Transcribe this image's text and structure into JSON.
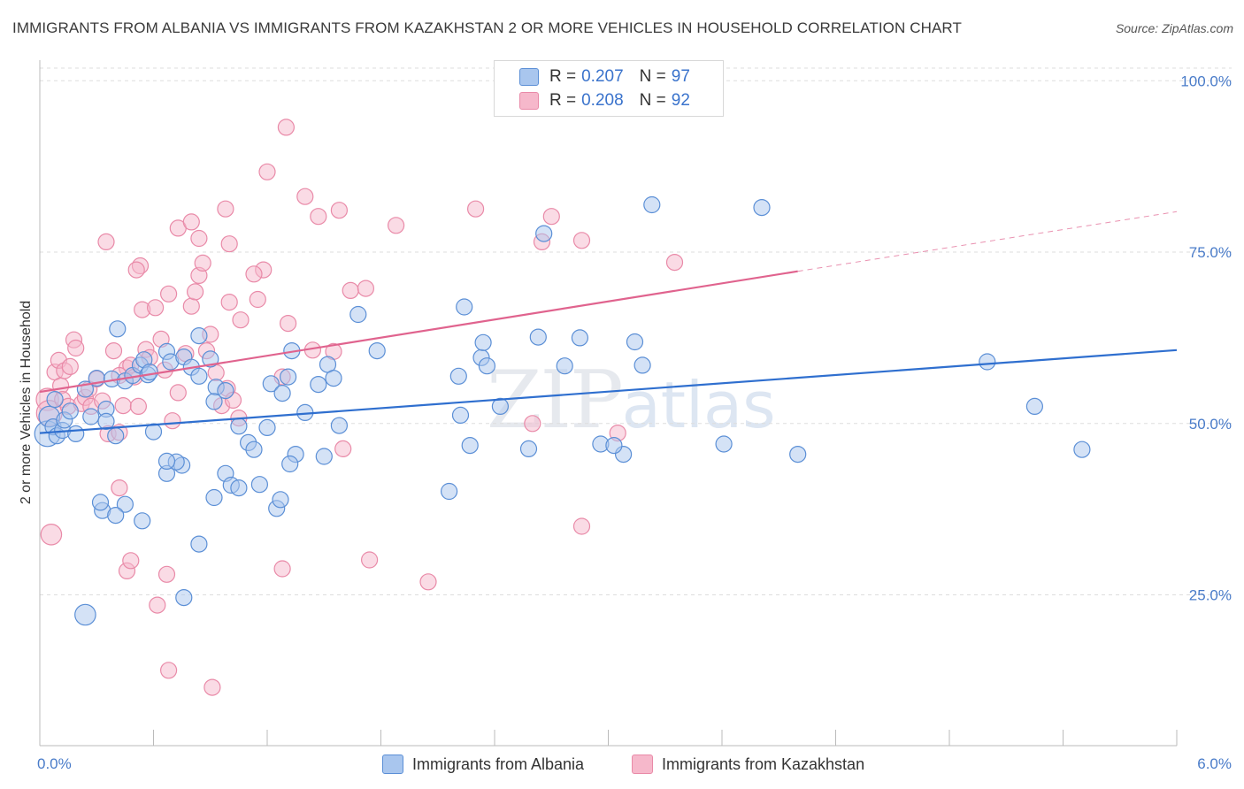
{
  "header": {
    "title": "IMMIGRANTS FROM ALBANIA VS IMMIGRANTS FROM KAZAKHSTAN 2 OR MORE VEHICLES IN HOUSEHOLD CORRELATION CHART",
    "source": "Source: ZipAtlas.com"
  },
  "legend": {
    "albania": {
      "r_label": "R =",
      "r_value": "0.207",
      "n_label": "N =",
      "n_value": "97"
    },
    "kazakhstan": {
      "r_label": "R =",
      "r_value": "0.208",
      "n_label": "N =",
      "n_value": "92"
    }
  },
  "watermark": {
    "zip": "ZIP",
    "atlas": "atlas"
  },
  "colors": {
    "albania_fill": "#a9c6ee",
    "albania_stroke": "#5b8fd6",
    "albania_line": "#2f6fcf",
    "kazakhstan_fill": "#f6b8cb",
    "kazakhstan_stroke": "#e98aa8",
    "kazakhstan_line": "#e0638e",
    "tick_label": "#4a7cc9",
    "grid": "#dddddd"
  },
  "chart_data": {
    "type": "scatter",
    "title": "IMMIGRANTS FROM ALBANIA VS IMMIGRANTS FROM KAZAKHSTAN 2 OR MORE VEHICLES IN HOUSEHOLD CORRELATION CHART",
    "xlabel": "",
    "ylabel": "2 or more Vehicles in Household",
    "xlim": [
      0,
      6
    ],
    "ylim": [
      3,
      103
    ],
    "x_tick_labels": [
      "0.0%",
      "6.0%"
    ],
    "y_ticks": [
      25,
      50,
      75,
      100
    ],
    "y_tick_labels": [
      "25.0%",
      "50.0%",
      "75.0%",
      "100.0%"
    ],
    "grid": true,
    "legend_position": "top-center",
    "series": [
      {
        "name": "Immigrants from Albania",
        "R": 0.207,
        "N": 97,
        "trend": {
          "x0": 0,
          "y0": 48.6,
          "x1": 6,
          "y1": 60.7
        },
        "points": [
          [
            0.04,
            48.5,
            1.6
          ],
          [
            0.05,
            51.0,
            1.3
          ],
          [
            0.07,
            49.5,
            1.0
          ],
          [
            0.08,
            53.5,
            1.0
          ],
          [
            0.09,
            48.2,
            1.0
          ],
          [
            0.12,
            49.0,
            1.0
          ],
          [
            0.13,
            50.5,
            1.0
          ],
          [
            0.16,
            51.8,
            1.0
          ],
          [
            0.19,
            48.5,
            1.0
          ],
          [
            0.24,
            55.0,
            1.0
          ],
          [
            0.27,
            51.0,
            1.0
          ],
          [
            0.3,
            56.6,
            1.0
          ],
          [
            0.35,
            52.1,
            1.0
          ],
          [
            0.35,
            50.3,
            1.0
          ],
          [
            0.38,
            56.5,
            1.0
          ],
          [
            0.4,
            48.2,
            1.0
          ],
          [
            0.45,
            56.2,
            1.0
          ],
          [
            0.49,
            57.0,
            1.0
          ],
          [
            0.53,
            58.5,
            1.0
          ],
          [
            0.55,
            59.3,
            1.0
          ],
          [
            0.57,
            57.1,
            1.0
          ],
          [
            0.41,
            63.8,
            1.0
          ],
          [
            0.58,
            57.5,
            1.0
          ],
          [
            0.6,
            48.8,
            1.0
          ],
          [
            0.67,
            60.5,
            1.0
          ],
          [
            0.69,
            59.0,
            1.0
          ],
          [
            0.76,
            59.7,
            1.0
          ],
          [
            0.8,
            58.2,
            1.0
          ],
          [
            0.84,
            56.9,
            1.0
          ],
          [
            0.84,
            62.8,
            1.0
          ],
          [
            0.9,
            59.4,
            1.0
          ],
          [
            0.93,
            55.3,
            1.0
          ],
          [
            0.92,
            53.2,
            1.0
          ],
          [
            0.98,
            54.8,
            1.0
          ],
          [
            1.05,
            49.6,
            1.0
          ],
          [
            1.1,
            47.2,
            1.0
          ],
          [
            1.13,
            46.2,
            1.0
          ],
          [
            1.2,
            49.4,
            1.0
          ],
          [
            1.22,
            55.8,
            1.0
          ],
          [
            1.33,
            60.6,
            1.0
          ],
          [
            1.4,
            51.6,
            1.0
          ],
          [
            1.47,
            55.7,
            1.0
          ],
          [
            1.52,
            58.6,
            1.0
          ],
          [
            1.55,
            56.6,
            1.0
          ],
          [
            1.58,
            49.7,
            1.0
          ],
          [
            1.5,
            45.2,
            1.0
          ],
          [
            1.31,
            56.8,
            1.0
          ],
          [
            1.35,
            45.5,
            1.0
          ],
          [
            1.28,
            54.4,
            1.0
          ],
          [
            1.32,
            44.1,
            1.0
          ],
          [
            0.67,
            42.7,
            1.0
          ],
          [
            0.75,
            43.9,
            1.0
          ],
          [
            0.72,
            44.4,
            1.0
          ],
          [
            0.67,
            44.5,
            1.0
          ],
          [
            0.98,
            42.7,
            1.0
          ],
          [
            1.01,
            41.0,
            1.0
          ],
          [
            1.05,
            40.6,
            1.0
          ],
          [
            1.16,
            41.1,
            1.0
          ],
          [
            1.25,
            37.6,
            1.0
          ],
          [
            1.27,
            38.9,
            1.0
          ],
          [
            0.33,
            37.3,
            1.0
          ],
          [
            0.32,
            38.5,
            1.0
          ],
          [
            0.45,
            38.2,
            1.0
          ],
          [
            0.54,
            35.8,
            1.0
          ],
          [
            0.92,
            39.2,
            1.0
          ],
          [
            0.84,
            32.4,
            1.0
          ],
          [
            0.76,
            24.6,
            1.0
          ],
          [
            0.24,
            22.1,
            1.3
          ],
          [
            0.4,
            36.6,
            1.0
          ],
          [
            1.68,
            65.9,
            1.0
          ],
          [
            1.78,
            60.6,
            1.0
          ],
          [
            2.16,
            40.1,
            1.0
          ],
          [
            2.21,
            56.9,
            1.0
          ],
          [
            2.24,
            67.0,
            1.0
          ],
          [
            2.33,
            59.6,
            1.0
          ],
          [
            2.34,
            61.8,
            1.0
          ],
          [
            2.43,
            52.5,
            1.0
          ],
          [
            2.27,
            46.8,
            1.0
          ],
          [
            2.22,
            51.2,
            1.0
          ],
          [
            2.36,
            58.4,
            1.0
          ],
          [
            2.58,
            46.3,
            1.0
          ],
          [
            2.63,
            62.6,
            1.0
          ],
          [
            2.66,
            77.7,
            1.0
          ],
          [
            2.77,
            58.4,
            1.0
          ],
          [
            2.85,
            62.5,
            1.0
          ],
          [
            2.96,
            47.0,
            1.0
          ],
          [
            3.08,
            45.5,
            1.0
          ],
          [
            3.14,
            61.9,
            1.0
          ],
          [
            3.18,
            58.5,
            1.0
          ],
          [
            3.23,
            81.9,
            1.0
          ],
          [
            3.03,
            46.8,
            1.0
          ],
          [
            3.61,
            47.0,
            1.0
          ],
          [
            3.81,
            81.5,
            1.0
          ],
          [
            4.0,
            45.5,
            1.0
          ],
          [
            5.0,
            59.0,
            1.0
          ],
          [
            5.25,
            52.5,
            1.0
          ],
          [
            5.5,
            46.2,
            1.0
          ]
        ]
      },
      {
        "name": "Immigrants from Kazakhstan",
        "R": 0.208,
        "N": 92,
        "trend": {
          "x0": 0,
          "y0": 54.6,
          "x1": 4.0,
          "y1": 72.2,
          "dashed_to_x": 6,
          "dashed_to_y": 80.9
        },
        "points": [
          [
            0.04,
            53.5,
            1.4
          ],
          [
            0.05,
            51.5,
            1.6
          ],
          [
            0.06,
            33.8,
            1.3
          ],
          [
            0.08,
            57.5,
            1.0
          ],
          [
            0.1,
            59.2,
            1.0
          ],
          [
            0.11,
            55.5,
            1.0
          ],
          [
            0.12,
            53.5,
            1.0
          ],
          [
            0.13,
            57.7,
            1.0
          ],
          [
            0.15,
            52.5,
            1.0
          ],
          [
            0.16,
            58.3,
            1.0
          ],
          [
            0.18,
            62.2,
            1.0
          ],
          [
            0.19,
            61.0,
            1.0
          ],
          [
            0.22,
            52.9,
            1.0
          ],
          [
            0.24,
            53.8,
            1.0
          ],
          [
            0.26,
            55.0,
            1.0
          ],
          [
            0.27,
            52.5,
            1.0
          ],
          [
            0.3,
            56.5,
            1.0
          ],
          [
            0.33,
            53.3,
            1.0
          ],
          [
            0.36,
            48.5,
            1.0
          ],
          [
            0.39,
            60.6,
            1.0
          ],
          [
            0.42,
            48.7,
            1.0
          ],
          [
            0.44,
            52.6,
            1.0
          ],
          [
            0.46,
            58.1,
            1.0
          ],
          [
            0.48,
            58.5,
            1.0
          ],
          [
            0.5,
            56.8,
            1.0
          ],
          [
            0.52,
            52.5,
            1.0
          ],
          [
            0.54,
            66.6,
            1.0
          ],
          [
            0.56,
            60.8,
            1.0
          ],
          [
            0.58,
            59.6,
            1.0
          ],
          [
            0.61,
            66.9,
            1.0
          ],
          [
            0.64,
            62.3,
            1.0
          ],
          [
            0.66,
            57.8,
            1.0
          ],
          [
            0.68,
            68.9,
            1.0
          ],
          [
            0.7,
            50.4,
            1.0
          ],
          [
            0.73,
            54.5,
            1.0
          ],
          [
            0.77,
            60.2,
            1.0
          ],
          [
            0.8,
            67.1,
            1.0
          ],
          [
            0.82,
            69.2,
            1.0
          ],
          [
            0.84,
            71.6,
            1.0
          ],
          [
            0.86,
            73.4,
            1.0
          ],
          [
            0.88,
            60.6,
            1.0
          ],
          [
            0.9,
            63.0,
            1.0
          ],
          [
            0.93,
            57.4,
            1.0
          ],
          [
            0.96,
            52.6,
            1.0
          ],
          [
            0.99,
            55.1,
            1.0
          ],
          [
            1.02,
            53.4,
            1.0
          ],
          [
            1.05,
            50.8,
            1.0
          ],
          [
            0.35,
            76.5,
            1.0
          ],
          [
            0.53,
            73.0,
            1.0
          ],
          [
            0.73,
            78.5,
            1.0
          ],
          [
            0.8,
            79.4,
            1.0
          ],
          [
            0.84,
            77.0,
            1.0
          ],
          [
            0.98,
            81.3,
            1.0
          ],
          [
            1.0,
            76.2,
            1.0
          ],
          [
            1.2,
            86.7,
            1.0
          ],
          [
            1.3,
            93.2,
            1.0
          ],
          [
            1.4,
            83.1,
            1.0
          ],
          [
            1.47,
            80.2,
            1.0
          ],
          [
            1.58,
            81.1,
            1.0
          ],
          [
            1.18,
            72.4,
            1.0
          ],
          [
            1.13,
            71.8,
            1.0
          ],
          [
            1.06,
            65.1,
            1.0
          ],
          [
            1.0,
            67.7,
            1.0
          ],
          [
            1.15,
            68.1,
            1.0
          ],
          [
            1.28,
            56.8,
            1.0
          ],
          [
            1.31,
            64.6,
            1.0
          ],
          [
            1.44,
            60.7,
            1.0
          ],
          [
            1.55,
            60.5,
            1.0
          ],
          [
            1.64,
            69.4,
            1.0
          ],
          [
            1.72,
            69.7,
            1.0
          ],
          [
            1.6,
            46.3,
            1.0
          ],
          [
            1.88,
            78.9,
            1.0
          ],
          [
            2.05,
            26.9,
            1.0
          ],
          [
            2.3,
            81.3,
            1.0
          ],
          [
            2.65,
            76.5,
            1.0
          ],
          [
            2.7,
            80.2,
            1.0
          ],
          [
            2.6,
            50.0,
            1.0
          ],
          [
            2.86,
            35.0,
            1.0
          ],
          [
            2.86,
            76.7,
            1.0
          ],
          [
            3.05,
            48.6,
            1.0
          ],
          [
            3.35,
            73.5,
            1.0
          ],
          [
            0.42,
            40.6,
            1.0
          ],
          [
            0.46,
            28.5,
            1.0
          ],
          [
            0.48,
            30.0,
            1.0
          ],
          [
            0.62,
            23.5,
            1.0
          ],
          [
            0.67,
            28.0,
            1.0
          ],
          [
            0.68,
            14.0,
            1.0
          ],
          [
            0.91,
            11.5,
            1.0
          ],
          [
            1.28,
            28.8,
            1.0
          ],
          [
            1.74,
            30.1,
            1.0
          ],
          [
            0.51,
            72.4,
            1.0
          ],
          [
            0.42,
            57.0,
            1.0
          ]
        ]
      }
    ]
  },
  "bottom_legend": {
    "albania_label": "Immigrants from Albania",
    "kazakhstan_label": "Immigrants from Kazakhstan"
  }
}
